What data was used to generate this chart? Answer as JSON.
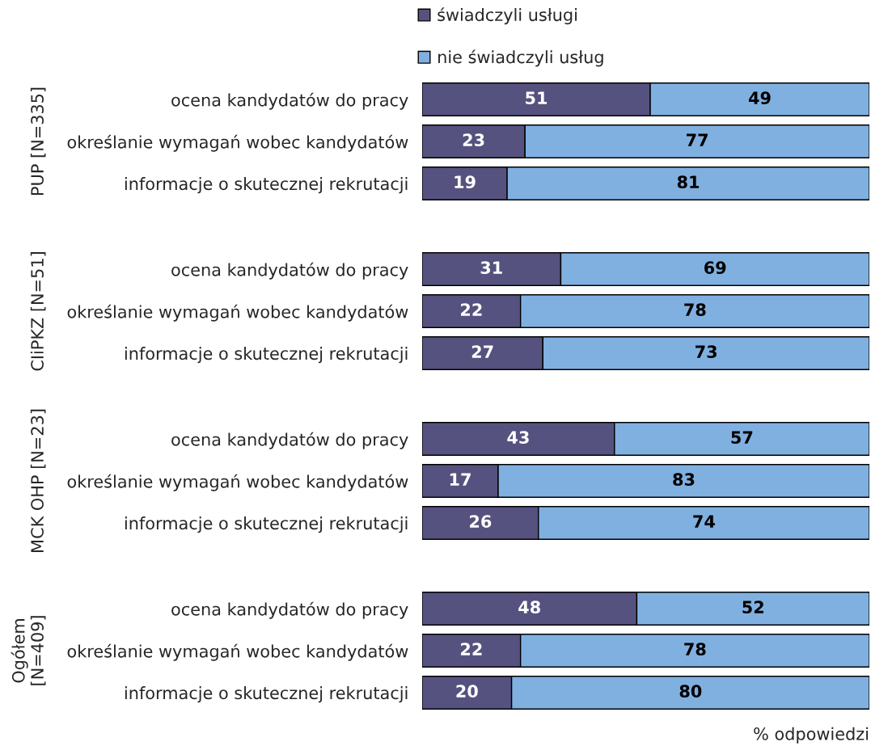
{
  "chart_data": [
    {
      "type": "bar",
      "orientation": "horizontal",
      "stacked": true,
      "ylabel": "PUP [N=335]",
      "categories": [
        "ocena kandydatów do pracy",
        "określanie wymagań wobec kandydatów",
        "informacje o skutecznej rekrutacji"
      ],
      "series": [
        {
          "name": "świadczyli usługi",
          "color": "#56527f",
          "values": [
            51,
            23,
            19
          ]
        },
        {
          "name": "nie świadczyli usług",
          "color": "#80b0e0",
          "values": [
            49,
            77,
            81
          ]
        }
      ],
      "xlim": [
        0,
        100
      ],
      "tick_labels": "y",
      "data_labels": true,
      "legend": "top",
      "grid": false
    },
    {
      "type": "bar",
      "orientation": "horizontal",
      "stacked": true,
      "ylabel": "CIiPKZ [N=51]",
      "categories": [
        "ocena kandydatów do pracy",
        "określanie wymagań wobec kandydatów",
        "informacje o skutecznej rekrutacji"
      ],
      "series": [
        {
          "color": "#56527f",
          "values": [
            31,
            22,
            27
          ]
        },
        {
          "color": "#80b0e0",
          "values": [
            69,
            78,
            73
          ]
        }
      ],
      "xlim": [
        0,
        100
      ],
      "tick_labels": "y",
      "data_labels": true,
      "grid": false
    },
    {
      "type": "bar",
      "orientation": "horizontal",
      "stacked": true,
      "ylabel": "MCK OHP [N=23]",
      "categories": [
        "ocena kandydatów do pracy",
        "określanie wymagań wobec kandydatów",
        "informacje o skutecznej rekrutacji"
      ],
      "series": [
        {
          "color": "#56527f",
          "values": [
            43,
            17,
            26
          ]
        },
        {
          "color": "#80b0e0",
          "values": [
            57,
            83,
            74
          ]
        }
      ],
      "xlim": [
        0,
        100
      ],
      "tick_labels": "y",
      "data_labels": true,
      "grid": false
    },
    {
      "type": "bar",
      "orientation": "horizontal",
      "stacked": true,
      "ylabel": "Ogółem\n[N=409]",
      "xlabel": "% odpowiedzi",
      "categories": [
        "ocena kandydatów do pracy",
        "określanie wymagań wobec kandydatów",
        "informacje o skutecznej rekrutacji"
      ],
      "series": [
        {
          "color": "#56527f",
          "values": [
            48,
            22,
            20
          ]
        },
        {
          "color": "#80b0e0",
          "values": [
            52,
            78,
            80
          ]
        }
      ],
      "xlim": [
        0,
        100
      ],
      "tick_labels": "y",
      "data_labels": true,
      "grid": false
    }
  ]
}
